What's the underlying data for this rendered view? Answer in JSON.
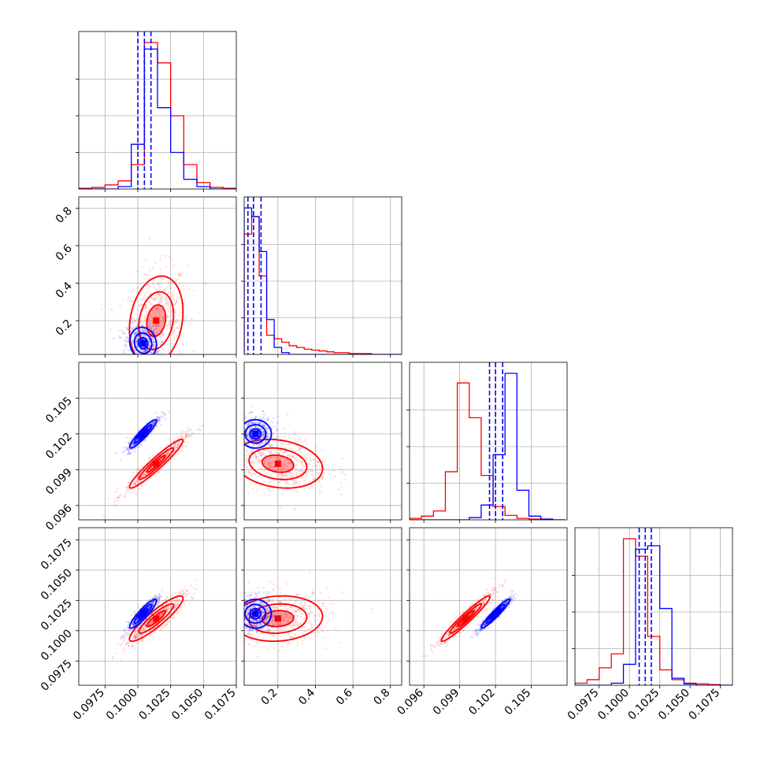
{
  "chart_data": {
    "type": "corner",
    "parameters": 4,
    "grid": true,
    "colors": {
      "blue": "#0000ff",
      "red": "#ff0000"
    },
    "axes": [
      {
        "range": [
          0.0955,
          0.1075
        ],
        "ticks": [
          0.0975,
          0.1,
          0.1025,
          0.105,
          0.1075
        ],
        "tick_labels": [
          "0.0975",
          "0.1000",
          "0.1025",
          "0.1050",
          "0.1075"
        ]
      },
      {
        "range": [
          0.02,
          0.86
        ],
        "ticks": [
          0.2,
          0.4,
          0.6,
          0.8
        ],
        "tick_labels": [
          "0.2",
          "0.4",
          "0.6",
          "0.8"
        ]
      },
      {
        "range": [
          0.0948,
          0.108
        ],
        "ticks": [
          0.096,
          0.099,
          0.102,
          0.105
        ],
        "tick_labels": [
          "0.096",
          "0.099",
          "0.102",
          "0.105"
        ]
      },
      {
        "range": [
          0.0955,
          0.1085
        ],
        "ticks": [
          0.0975,
          0.1,
          0.1025,
          0.105,
          0.1075
        ],
        "tick_labels": [
          "0.0975",
          "0.1000",
          "0.1025",
          "0.1050",
          "0.1075"
        ]
      }
    ],
    "series": [
      {
        "color": "#0000ff",
        "quantiles": [
          [
            0.1,
            0.1005,
            0.101
          ],
          [
            0.04,
            0.07,
            0.11
          ],
          [
            0.1015,
            0.102,
            0.1026
          ],
          [
            0.1008,
            0.1013,
            0.1018
          ]
        ],
        "hist": [
          {
            "bins": [
              0.0955,
              0.0965,
              0.0975,
              0.0985,
              0.0995,
              0.1005,
              0.1015,
              0.1025,
              0.1035,
              0.1045,
              0.1055,
              0.1065,
              0.1075
            ],
            "counts": [
              0,
              0,
              0,
              3,
              55,
              172,
              100,
              45,
              12,
              3,
              0,
              0
            ]
          },
          {
            "bins": [
              0.02,
              0.06,
              0.1,
              0.14,
              0.18,
              0.22,
              0.26,
              0.3,
              0.34,
              0.38,
              0.42,
              0.46,
              0.5,
              0.54,
              0.58,
              0.62,
              0.66,
              0.7,
              0.74,
              0.78,
              0.82,
              0.86
            ],
            "counts": [
              168,
              158,
              118,
              40,
              8,
              2,
              0,
              0,
              0,
              0,
              0,
              0,
              0,
              0,
              0,
              0,
              0,
              0,
              0,
              0,
              0
            ]
          },
          {
            "bins": [
              0.0948,
              0.0958,
              0.0968,
              0.0978,
              0.0988,
              0.0998,
              0.1008,
              0.1018,
              0.1028,
              0.1038,
              0.1048,
              0.1058,
              0.1068,
              0.1078
            ],
            "counts": [
              0,
              0,
              0,
              0,
              0,
              3,
              20,
              88,
              198,
              40,
              5,
              1,
              0
            ]
          },
          {
            "bins": [
              0.0955,
              0.0965,
              0.0975,
              0.0985,
              0.0995,
              0.1005,
              0.1015,
              0.1025,
              0.1035,
              0.1045,
              0.1055,
              0.1065,
              0.1075,
              0.1085
            ],
            "counts": [
              0,
              0,
              0,
              3,
              30,
              195,
              200,
              110,
              10,
              2,
              0,
              0,
              0
            ]
          }
        ],
        "mean": [
          0.1004,
          0.08,
          0.102,
          0.1014
        ],
        "sd": [
          0.0006,
          0.05,
          0.0007,
          0.0007
        ],
        "corr": [
          [
            1.0,
            -0.1,
            0.92,
            0.9
          ],
          [
            -0.1,
            1.0,
            0.0,
            0.0
          ],
          [
            0.92,
            0.0,
            1.0,
            0.95
          ],
          [
            0.9,
            0.0,
            0.95,
            1.0
          ]
        ]
      },
      {
        "color": "#ff0000",
        "quantiles": null,
        "hist": [
          {
            "bins": [
              0.0955,
              0.0965,
              0.0975,
              0.0985,
              0.0995,
              0.1005,
              0.1015,
              0.1025,
              0.1035,
              0.1045,
              0.1055,
              0.1065,
              0.1075
            ],
            "counts": [
              1,
              2,
              5,
              10,
              30,
              180,
              155,
              90,
              30,
              8,
              2,
              1
            ]
          },
          {
            "bins": [
              0.02,
              0.06,
              0.1,
              0.14,
              0.18,
              0.22,
              0.26,
              0.3,
              0.34,
              0.38,
              0.42,
              0.46,
              0.5,
              0.54,
              0.58,
              0.62,
              0.66,
              0.7,
              0.74,
              0.78,
              0.82,
              0.86
            ],
            "counts": [
              138,
              158,
              90,
              22,
              18,
              14,
              10,
              8,
              6,
              5,
              4,
              3,
              2,
              2,
              1,
              1,
              1,
              0,
              0,
              0,
              0
            ]
          },
          {
            "bins": [
              0.0948,
              0.0958,
              0.0968,
              0.0978,
              0.0988,
              0.0998,
              0.1008,
              0.1018,
              0.1028,
              0.1038,
              0.1048,
              0.1058,
              0.1068,
              0.1078
            ],
            "counts": [
              2,
              5,
              12,
              65,
              185,
              138,
              60,
              18,
              6,
              2,
              1,
              0,
              0
            ]
          },
          {
            "bins": [
              0.0955,
              0.0965,
              0.0975,
              0.0985,
              0.0995,
              0.1005,
              0.1015,
              0.1025,
              0.1035,
              0.1045,
              0.1055,
              0.1065,
              0.1075,
              0.1085
            ],
            "counts": [
              3,
              8,
              25,
              45,
              210,
              185,
              70,
              22,
              8,
              3,
              2,
              1,
              0
            ]
          }
        ],
        "mean": [
          0.1014,
          0.2,
          0.0995,
          0.101
        ],
        "sd": [
          0.0012,
          0.14,
          0.0012,
          0.0011
        ],
        "corr": [
          [
            1.0,
            0.2,
            0.95,
            0.9
          ],
          [
            0.2,
            1.0,
            -0.2,
            0.1
          ],
          [
            0.95,
            -0.2,
            1.0,
            0.96
          ],
          [
            0.9,
            0.1,
            0.96,
            1.0
          ]
        ]
      }
    ]
  }
}
